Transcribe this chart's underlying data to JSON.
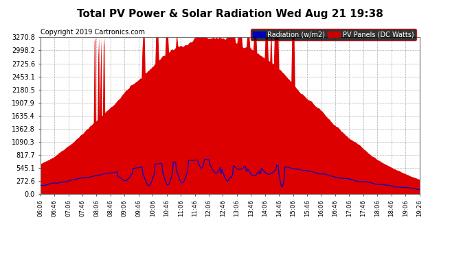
{
  "title": "Total PV Power & Solar Radiation Wed Aug 21 19:38",
  "copyright": "Copyright 2019 Cartronics.com",
  "legend_radiation": "Radiation (w/m2)",
  "legend_pv": "PV Panels (DC Watts)",
  "legend_radiation_bg": "#0000bb",
  "legend_pv_bg": "#cc0000",
  "ytick_labels": [
    "0.0",
    "272.6",
    "545.1",
    "817.7",
    "1090.3",
    "1362.8",
    "1635.4",
    "1907.9",
    "2180.5",
    "2453.1",
    "2725.6",
    "2998.2",
    "3270.8"
  ],
  "ytick_values": [
    0.0,
    272.6,
    545.1,
    817.7,
    1090.3,
    1362.8,
    1635.4,
    1907.9,
    2180.5,
    2453.1,
    2725.6,
    2998.2,
    3270.8
  ],
  "ymax": 3270.8,
  "ymin": 0.0,
  "background_color": "#ffffff",
  "plot_bg_color": "#ffffff",
  "grid_color": "#999999",
  "pv_color": "#dd0000",
  "radiation_color": "#0000cc",
  "title_fontsize": 11,
  "copyright_fontsize": 7,
  "xtick_labels": [
    "06:06",
    "06:46",
    "07:06",
    "07:46",
    "08:06",
    "08:46",
    "09:06",
    "09:46",
    "10:06",
    "10:46",
    "11:06",
    "11:46",
    "12:06",
    "12:46",
    "13:06",
    "13:46",
    "14:06",
    "14:46",
    "15:06",
    "15:46",
    "16:06",
    "16:46",
    "17:06",
    "17:46",
    "18:06",
    "18:46",
    "19:06",
    "19:26"
  ],
  "num_points": 500
}
